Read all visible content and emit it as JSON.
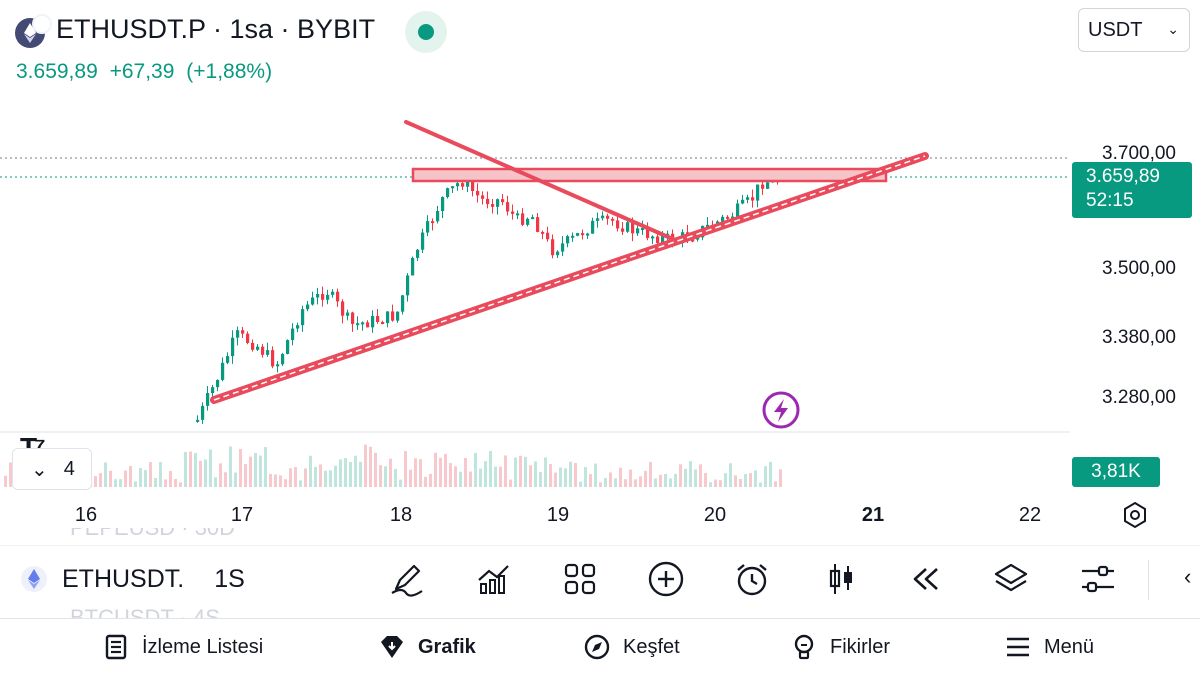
{
  "header": {
    "symbol_title": "ETHUSDT.P · 1sa · BYBIT",
    "last_price": "3.659,89",
    "change_abs": "+67,39",
    "change_pct": "(+1,88%)",
    "currency": "USDT"
  },
  "price_axis": {
    "labels": [
      "3.700,00",
      "3.500,00",
      "3.380,00",
      "3.280,00"
    ],
    "current_price": "3.659,89",
    "countdown": "52:15"
  },
  "volume": {
    "value": "3,81K"
  },
  "time_axis": {
    "labels": [
      "16",
      "17",
      "18",
      "19",
      "20",
      "21",
      "22"
    ],
    "highlighted": "21"
  },
  "indicators": {
    "collapsed_count": "4"
  },
  "watchlist_ghost": {
    "above": "PEPEUSD · 30D",
    "below": "BTCUSDT · 4S"
  },
  "symbol_bar": {
    "symbol": "ETHUSDT.",
    "interval": "1S",
    "tools": [
      "pencil-icon",
      "indicators-icon",
      "layouts-icon",
      "add-icon",
      "alert-clock-icon",
      "candles-icon",
      "replay-icon",
      "layers-icon",
      "settings-sliders-icon"
    ]
  },
  "bottom_nav": [
    {
      "label": "İzleme Listesi",
      "icon": "watchlist-icon"
    },
    {
      "label": "Grafik",
      "icon": "chart-icon"
    },
    {
      "label": "Keşfet",
      "icon": "compass-icon"
    },
    {
      "label": "Fikirler",
      "icon": "ideas-icon"
    },
    {
      "label": "Menü",
      "icon": "menu-icon"
    }
  ],
  "colors": {
    "up": "#089981",
    "down": "#f23645",
    "drawing": "#e94b5c"
  }
}
